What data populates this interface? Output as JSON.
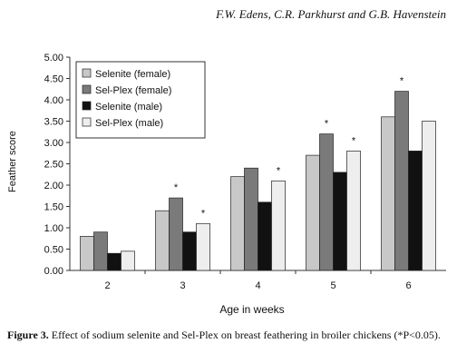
{
  "header": {
    "authors": "F.W. Edens, C.R. Parkhurst and G.B. Havenstein"
  },
  "caption": {
    "label": "Figure 3.",
    "text": "Effect of sodium selenite and Sel-Plex on breast feathering in broiler chickens (*P<0.05)."
  },
  "chart_data": {
    "type": "bar",
    "xlabel": "Age in weeks",
    "ylabel": "Feather score",
    "ylim": [
      0,
      5
    ],
    "yticks": [
      "0.00",
      "0.50",
      "1.00",
      "1.50",
      "2.00",
      "2.50",
      "3.00",
      "3.50",
      "4.00",
      "4.50",
      "5.00"
    ],
    "categories": [
      "2",
      "3",
      "4",
      "5",
      "6"
    ],
    "legend_position": "top-left",
    "grid": false,
    "series": [
      {
        "name": "Selenite (female)",
        "color": "#c8c8c8",
        "values": [
          0.8,
          1.4,
          2.2,
          2.7,
          3.6
        ],
        "significant": [
          false,
          false,
          false,
          false,
          false
        ]
      },
      {
        "name": "Sel-Plex (female)",
        "color": "#7a7a7a",
        "values": [
          0.9,
          1.7,
          2.4,
          3.2,
          4.2
        ],
        "significant": [
          false,
          true,
          false,
          true,
          true
        ]
      },
      {
        "name": "Selenite (male)",
        "color": "#111111",
        "values": [
          0.4,
          0.9,
          1.6,
          2.3,
          2.8
        ],
        "significant": [
          false,
          false,
          false,
          false,
          false
        ]
      },
      {
        "name": "Sel-Plex (male)",
        "color": "#eeeeee",
        "values": [
          0.45,
          1.1,
          2.1,
          2.8,
          3.5
        ],
        "significant": [
          false,
          true,
          true,
          true,
          false
        ]
      }
    ],
    "significance_marker": "*"
  }
}
